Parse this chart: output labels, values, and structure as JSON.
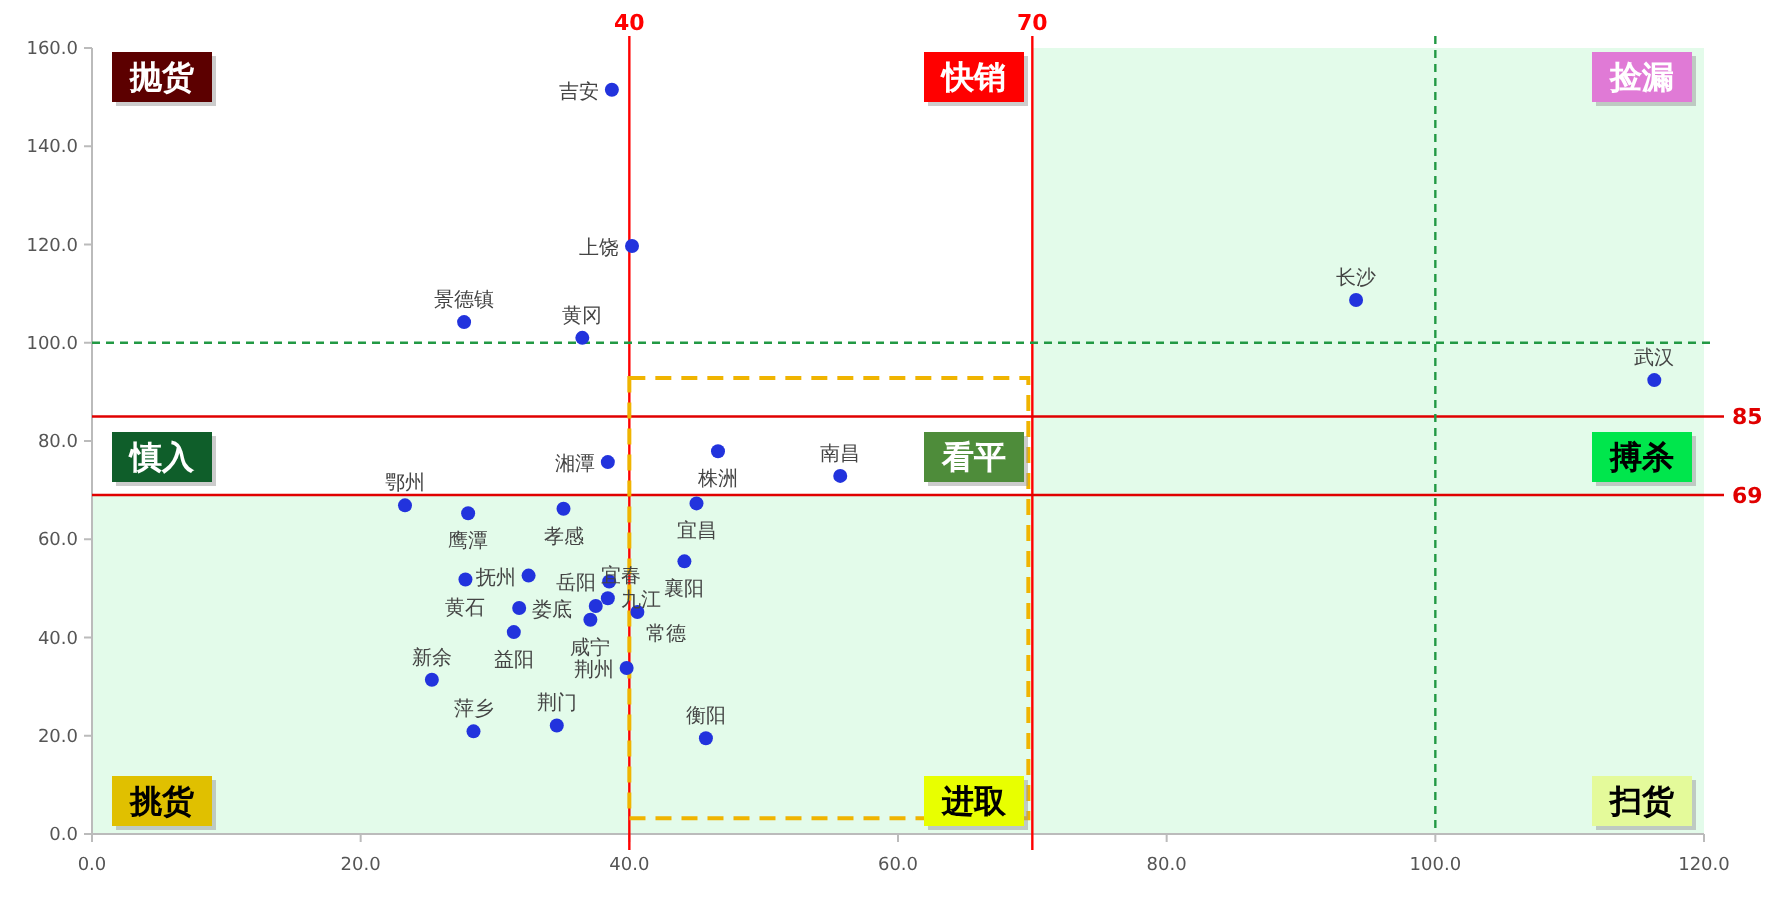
{
  "chart_data": {
    "type": "scatter",
    "xlim": [
      0,
      120
    ],
    "ylim": [
      0,
      160
    ],
    "xticks": [
      {
        "value": 0,
        "label": "0.0"
      },
      {
        "value": 20,
        "label": "20.0"
      },
      {
        "value": 40,
        "label": "40.0"
      },
      {
        "value": 60,
        "label": "60.0"
      },
      {
        "value": 80,
        "label": "80.0"
      },
      {
        "value": 100,
        "label": "100.0"
      },
      {
        "value": 120,
        "label": "120.0"
      }
    ],
    "yticks": [
      {
        "value": 0,
        "label": "0.0"
      },
      {
        "value": 20,
        "label": "20.0"
      },
      {
        "value": 40,
        "label": "40.0"
      },
      {
        "value": 60,
        "label": "60.0"
      },
      {
        "value": 80,
        "label": "80.0"
      },
      {
        "value": 100,
        "label": "100.0"
      },
      {
        "value": 120,
        "label": "120.0"
      },
      {
        "value": 140,
        "label": "140.0"
      },
      {
        "value": 160,
        "label": "160.0"
      }
    ],
    "marker": "circle",
    "grid": false,
    "series": [
      {
        "color": "#2233dd",
        "x": [
          38.4,
          23.3,
          28.0,
          35.1,
          27.8,
          32.5,
          38.5,
          37.5,
          38.4,
          31.8,
          37.1,
          31.4,
          25.3,
          39.8,
          28.4,
          34.6,
          46.6,
          55.7,
          45.0,
          44.1,
          40.6,
          45.7,
          38.7,
          40.2,
          27.7,
          36.5,
          94.1,
          116.3
        ],
        "values": [
          75.7,
          66.9,
          65.3,
          66.2,
          51.8,
          52.6,
          51.4,
          46.4,
          48.0,
          46.0,
          43.6,
          41.1,
          31.4,
          33.8,
          20.9,
          22.1,
          77.9,
          72.9,
          67.3,
          55.5,
          45.2,
          19.5,
          151.5,
          119.7,
          104.2,
          101.0,
          108.7,
          92.4
        ]
      }
    ],
    "bands": [
      {
        "axis": "y",
        "from": 0,
        "to": 69,
        "color": "#e3fbea"
      },
      {
        "axis": "x",
        "from": 70,
        "to": 120,
        "color": "#e3fbea"
      }
    ],
    "ref_lines": [
      {
        "axis": "x",
        "value": 40,
        "label": "40",
        "color": "#ff0000",
        "line_style": "solid"
      },
      {
        "axis": "x",
        "value": 70,
        "label": "70",
        "color": "#ff0000",
        "line_style": "solid"
      },
      {
        "axis": "y",
        "value": 85,
        "label": "85",
        "color": "#e00000",
        "line_style": "solid"
      },
      {
        "axis": "y",
        "value": 69,
        "label": "69",
        "color": "#e00000",
        "line_style": "solid"
      },
      {
        "axis": "y",
        "value": 100,
        "color": "#229944",
        "line_style": "dashed"
      },
      {
        "axis": "x",
        "value": 100,
        "color": "#229944",
        "line_style": "dashed"
      }
    ],
    "annotations": [
      {
        "text": "湘潭",
        "x": 38.4,
        "y": 75.7
      },
      {
        "text": "鄂州",
        "x": 23.3,
        "y": 66.9
      },
      {
        "text": "鹰潭",
        "x": 28.0,
        "y": 65.3
      },
      {
        "text": "孝感",
        "x": 35.1,
        "y": 66.2
      },
      {
        "text": "黄石",
        "x": 27.8,
        "y": 51.8
      },
      {
        "text": "抚州",
        "x": 32.5,
        "y": 52.6
      },
      {
        "text": "岳阳",
        "x": 38.5,
        "y": 51.4
      },
      {
        "text": "宜春",
        "x": 37.5,
        "y": 46.4
      },
      {
        "text": "九江",
        "x": 38.4,
        "y": 48.0
      },
      {
        "text": "娄底",
        "x": 31.8,
        "y": 46.0
      },
      {
        "text": "咸宁",
        "x": 37.1,
        "y": 43.6
      },
      {
        "text": "益阳",
        "x": 31.4,
        "y": 41.1
      },
      {
        "text": "新余",
        "x": 25.3,
        "y": 31.4
      },
      {
        "text": "荆州",
        "x": 39.8,
        "y": 33.8
      },
      {
        "text": "萍乡",
        "x": 28.4,
        "y": 20.9
      },
      {
        "text": "荆门",
        "x": 34.6,
        "y": 22.1
      },
      {
        "text": "株洲",
        "x": 46.6,
        "y": 77.9
      },
      {
        "text": "南昌",
        "x": 55.7,
        "y": 72.9
      },
      {
        "text": "宜昌",
        "x": 45.0,
        "y": 67.3
      },
      {
        "text": "襄阳",
        "x": 44.1,
        "y": 55.5
      },
      {
        "text": "常德",
        "x": 40.6,
        "y": 45.2
      },
      {
        "text": "衡阳",
        "x": 45.7,
        "y": 19.5
      },
      {
        "text": "吉安",
        "x": 38.7,
        "y": 151.5
      },
      {
        "text": "上饶",
        "x": 40.2,
        "y": 119.7
      },
      {
        "text": "景德镇",
        "x": 27.7,
        "y": 104.2
      },
      {
        "text": "黄冈",
        "x": 36.5,
        "y": 101.0
      },
      {
        "text": "长沙",
        "x": 94.1,
        "y": 108.7
      },
      {
        "text": "武汉",
        "x": 116.3,
        "y": 92.4
      },
      "抛货",
      "快销",
      "捡漏",
      "慎入",
      "看平",
      "搏杀",
      "挑货",
      "进取",
      "扫货"
    ]
  }
}
